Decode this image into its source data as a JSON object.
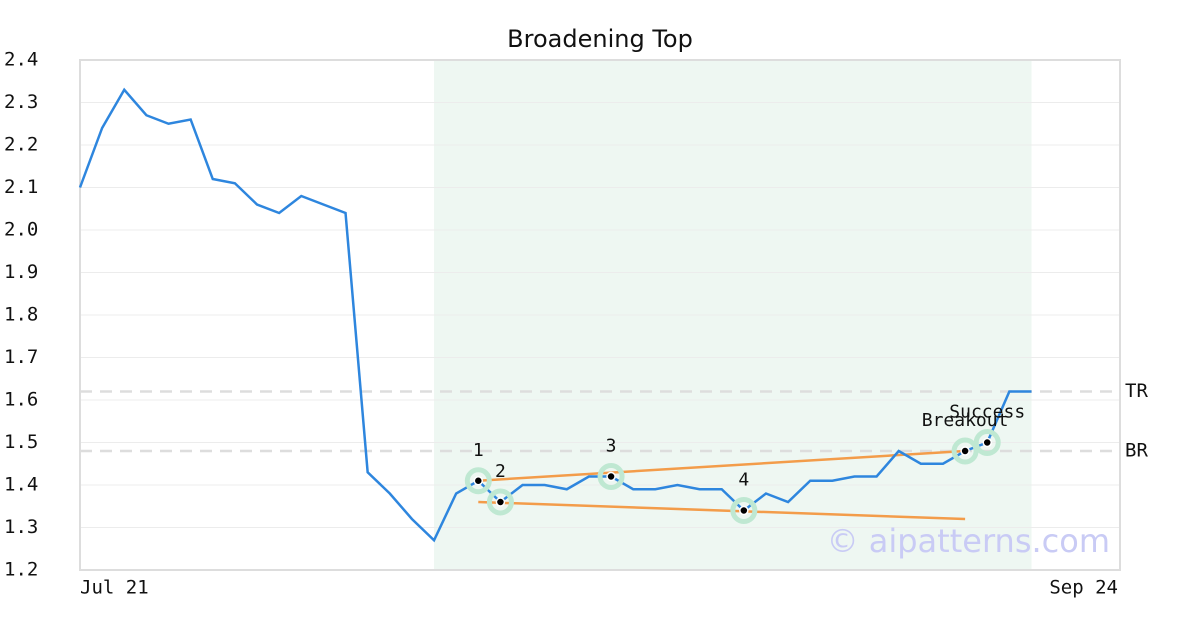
{
  "chart_data": {
    "type": "line",
    "title": "Broadening Top",
    "x": [
      0,
      1,
      2,
      3,
      4,
      5,
      6,
      7,
      8,
      9,
      10,
      11,
      12,
      13,
      14,
      15,
      16,
      17,
      18,
      19,
      20,
      21,
      22,
      23,
      24,
      25,
      26,
      27,
      28,
      29,
      30,
      31,
      32,
      33,
      34,
      35,
      36,
      37,
      38,
      39,
      40,
      41,
      42,
      43
    ],
    "series": [
      {
        "color": "#2e86de",
        "values": [
          2.1,
          2.24,
          2.33,
          2.27,
          2.25,
          2.26,
          2.12,
          2.11,
          2.06,
          2.04,
          2.08,
          2.06,
          2.04,
          1.43,
          1.38,
          1.32,
          1.27,
          1.38,
          1.41,
          1.36,
          1.4,
          1.4,
          1.39,
          1.42,
          1.42,
          1.39,
          1.39,
          1.4,
          1.39,
          1.39,
          1.34,
          1.38,
          1.36,
          1.41,
          1.41,
          1.42,
          1.42,
          1.48,
          1.45,
          1.45,
          1.48,
          1.5,
          1.62,
          1.62
        ]
      }
    ],
    "xlim": [
      0,
      47
    ],
    "xticks": [
      {
        "value": 0,
        "label": "Jul 21"
      },
      {
        "value": 47,
        "label": "Sep 24"
      }
    ],
    "ylim": [
      1.2,
      2.4
    ],
    "yticks": [
      1.2,
      1.3,
      1.4,
      1.5,
      1.6,
      1.7,
      1.8,
      1.9,
      {
        "value": 2,
        "label": "2.0"
      },
      2.1,
      2.2,
      2.3,
      2.4
    ],
    "grid": true,
    "shaded_region": {
      "x": [
        16,
        43
      ],
      "color": "#eef7f2"
    },
    "levels": [
      {
        "name": "TR",
        "value": 1.62
      },
      {
        "name": "BR",
        "value": 1.48
      }
    ],
    "trendlines": [
      {
        "x": [
          18,
          40
        ],
        "values": [
          1.41,
          1.48
        ],
        "color": "#f39c4a"
      },
      {
        "x": [
          18,
          40
        ],
        "values": [
          1.36,
          1.32
        ],
        "color": "#f39c4a"
      }
    ],
    "points": [
      {
        "x": 18,
        "value": 1.41,
        "label": "1"
      },
      {
        "x": 19,
        "value": 1.36,
        "label": "2"
      },
      {
        "x": 24,
        "value": 1.42,
        "label": "3"
      },
      {
        "x": 30,
        "value": 1.34,
        "label": "4"
      },
      {
        "x": 40,
        "value": 1.48,
        "label": "Breakout"
      },
      {
        "x": 41,
        "value": 1.5,
        "label": "Success"
      }
    ],
    "watermark": "© aipatterns.com"
  }
}
